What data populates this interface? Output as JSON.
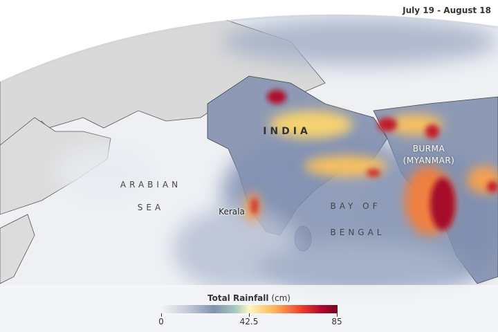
{
  "date_range": "July 19 - August 18",
  "labels": {
    "india": "INDIA",
    "arabian": "ARABIAN",
    "sea": "SEA",
    "kerala": "Kerala",
    "bay_of": "BAY OF",
    "bengal": "BENGAL",
    "burma": "BURMA",
    "myanmar": "(MYANMAR)"
  },
  "legend": {
    "title": "Total Rainfall",
    "unit": "(cm)",
    "ticks": [
      "0",
      "42.5",
      "85"
    ],
    "min": 0,
    "max": 85,
    "colors": [
      "#f2f3f6",
      "#7f93b0",
      "#fdf6c0",
      "#fdb55a",
      "#ef3b2c",
      "#7a0025"
    ]
  }
}
